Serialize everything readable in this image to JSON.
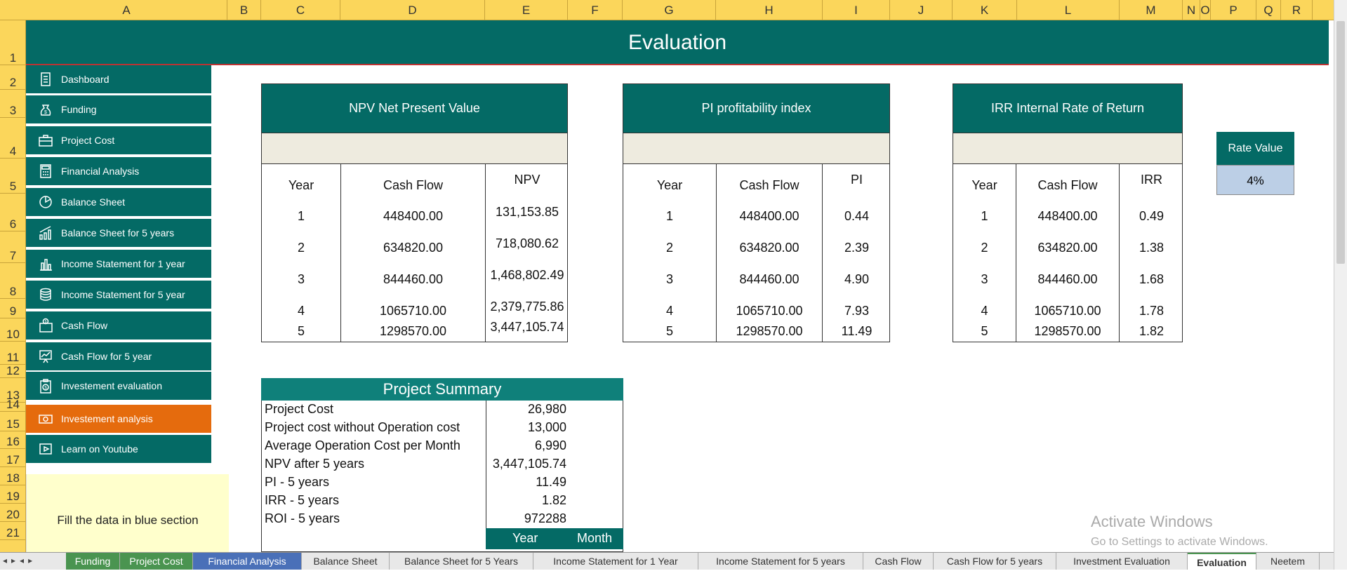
{
  "columns": [
    "A",
    "B",
    "C",
    "D",
    "E",
    "F",
    "G",
    "H",
    "I",
    "J",
    "K",
    "L",
    "M",
    "N",
    "O",
    "P",
    "Q",
    "R"
  ],
  "rows": [
    "1",
    "2",
    "3",
    "4",
    "5",
    "6",
    "7",
    "8",
    "9",
    "10",
    "11",
    "12",
    "13",
    "14",
    "15",
    "16",
    "17",
    "18",
    "19",
    "20",
    "21"
  ],
  "title": "Evaluation",
  "nav": [
    {
      "label": "Dashboard",
      "icon": "document-icon"
    },
    {
      "label": "Funding",
      "icon": "money-bag-icon"
    },
    {
      "label": "Project Cost",
      "icon": "briefcase-icon"
    },
    {
      "label": "Financial Analysis",
      "icon": "calculator-icon"
    },
    {
      "label": "Balance Sheet",
      "icon": "pie-chart-icon"
    },
    {
      "label": "Balance Sheet for 5 years",
      "icon": "growth-chart-icon"
    },
    {
      "label": "Income Statement for 1 year",
      "icon": "bar-chart-icon"
    },
    {
      "label": "Income Statement for 5 year",
      "icon": "coins-icon"
    },
    {
      "label": "Cash Flow",
      "icon": "wallet-icon"
    },
    {
      "label": "Cash Flow for 5 year",
      "icon": "presentation-icon"
    },
    {
      "label": "Investement evaluation",
      "icon": "dollar-clipboard-icon"
    },
    {
      "label": "Investement analysis",
      "icon": "banknote-icon",
      "active": true
    },
    {
      "label": "Learn on Youtube",
      "icon": "play-icon"
    }
  ],
  "note": "Fill the data in blue section",
  "npv": {
    "title": "NPV  Net Present Value",
    "headers": [
      "Year",
      "Cash Flow",
      "NPV"
    ],
    "rows": [
      [
        "1",
        "448400.00",
        "131,153.85"
      ],
      [
        "2",
        "634820.00",
        "718,080.62"
      ],
      [
        "3",
        "844460.00",
        "1,468,802.49"
      ],
      [
        "4",
        "1065710.00",
        "2,379,775.86"
      ],
      [
        "5",
        "1298570.00",
        "3,447,105.74"
      ]
    ]
  },
  "pi": {
    "title": "PI  profitability index",
    "headers": [
      "Year",
      "Cash Flow",
      "PI"
    ],
    "rows": [
      [
        "1",
        "448400.00",
        "0.44"
      ],
      [
        "2",
        "634820.00",
        "2.39"
      ],
      [
        "3",
        "844460.00",
        "4.90"
      ],
      [
        "4",
        "1065710.00",
        "7.93"
      ],
      [
        "5",
        "1298570.00",
        "11.49"
      ]
    ]
  },
  "irr": {
    "title": "IRR Internal Rate of Return",
    "headers": [
      "Year",
      "Cash Flow",
      "IRR"
    ],
    "rows": [
      [
        "1",
        "448400.00",
        "0.49"
      ],
      [
        "2",
        "634820.00",
        "1.38"
      ],
      [
        "3",
        "844460.00",
        "1.68"
      ],
      [
        "4",
        "1065710.00",
        "1.78"
      ],
      [
        "5",
        "1298570.00",
        "1.82"
      ]
    ]
  },
  "rate": {
    "label": "Rate Value",
    "value": "4%"
  },
  "summary": {
    "title": "Project Summary",
    "rows": [
      {
        "label": "Project Cost",
        "value": "26,980"
      },
      {
        "label": "Project cost without Operation cost",
        "value": "13,000"
      },
      {
        "label": "Average Operation Cost per Month",
        "value": "6,990"
      },
      {
        "label": "NPV after 5 years",
        "value": "3,447,105.74"
      },
      {
        "label": "PI - 5 years",
        "value": "11.49"
      },
      {
        "label": "IRR - 5 years",
        "value": "1.82"
      },
      {
        "label": "ROI - 5 years",
        "value": "972288"
      }
    ],
    "year_label": "Year",
    "month_label": "Month"
  },
  "activate": {
    "line1": "Activate Windows",
    "line2": "Go to Settings to activate Windows."
  },
  "tabs": [
    {
      "label": "Funding",
      "style": "green"
    },
    {
      "label": "Project Cost",
      "style": "green"
    },
    {
      "label": "Financial Analysis",
      "style": "blue"
    },
    {
      "label": "Balance Sheet",
      "style": ""
    },
    {
      "label": "Balance Sheet for 5 Years",
      "style": ""
    },
    {
      "label": "Income Statement for 1 Year",
      "style": ""
    },
    {
      "label": "Income Statement for 5 years",
      "style": ""
    },
    {
      "label": "Cash Flow",
      "style": ""
    },
    {
      "label": "Cash Flow for 5 years",
      "style": ""
    },
    {
      "label": "Investment Evaluation",
      "style": ""
    },
    {
      "label": "Evaluation",
      "style": "active"
    },
    {
      "label": "Neetem",
      "style": ""
    }
  ]
}
